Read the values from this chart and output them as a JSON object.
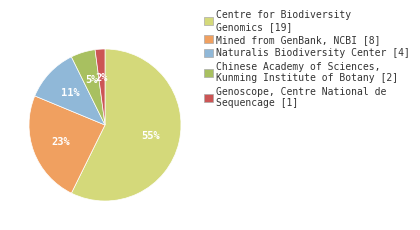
{
  "slices": [
    55,
    23,
    11,
    5,
    2
  ],
  "labels": [
    "Centre for Biodiversity\nGenomics [19]",
    "Mined from GenBank, NCBI [8]",
    "Naturalis Biodiversity Center [4]",
    "Chinese Academy of Sciences,\nKunming Institute of Botany [2]",
    "Genoscope, Centre National de\nSequencage [1]"
  ],
  "colors": [
    "#d4d97a",
    "#f0a060",
    "#90b8d8",
    "#a8c060",
    "#cc5555"
  ],
  "pct_labels": [
    "55%",
    "23%",
    "11%",
    "5%",
    "2%"
  ],
  "startangle": 90,
  "background_color": "#ffffff",
  "legend_fontsize": 7.0,
  "pct_fontsize": 7.5
}
